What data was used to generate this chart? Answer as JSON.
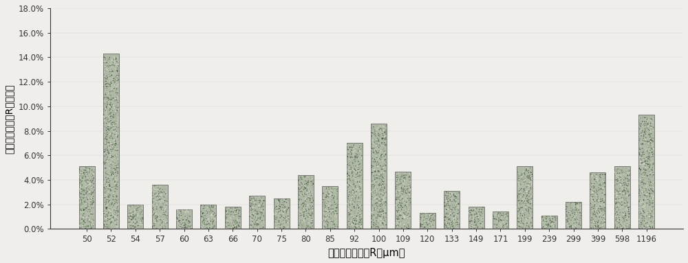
{
  "categories": [
    "50",
    "52",
    "54",
    "57",
    "60",
    "63",
    "66",
    "70",
    "75",
    "80",
    "85",
    "92",
    "100",
    "109",
    "120",
    "133",
    "149",
    "171",
    "199",
    "239",
    "299",
    "399",
    "598",
    "1196"
  ],
  "values": [
    5.1,
    14.3,
    2.0,
    3.6,
    1.6,
    2.0,
    1.8,
    2.7,
    2.5,
    4.4,
    3.5,
    7.0,
    8.6,
    4.7,
    1.3,
    3.1,
    1.8,
    1.4,
    5.1,
    1.1,
    2.2,
    4.6,
    5.1,
    9.3
  ],
  "bar_color_base": "#b0b8a8",
  "bar_edgecolor": "#555555",
  "xlabel": "对应的毛细孔径R（μm）",
  "ylabel": "对应的毛细孔径R占的比率",
  "ylim": [
    0.0,
    18.0
  ],
  "ytick_values": [
    0.0,
    2.0,
    4.0,
    6.0,
    8.0,
    10.0,
    12.0,
    14.0,
    16.0,
    18.0
  ],
  "ytick_labels": [
    "0.0%",
    "2.0%",
    "4.0%",
    "6.0%",
    "8.0%",
    "10.0%",
    "12.0%",
    "14.0%",
    "16.0%",
    "18.0%"
  ],
  "background_color": "#f0eeea",
  "xlabel_fontsize": 10.5,
  "ylabel_fontsize": 10,
  "tick_fontsize": 8.5,
  "bar_width": 0.65
}
